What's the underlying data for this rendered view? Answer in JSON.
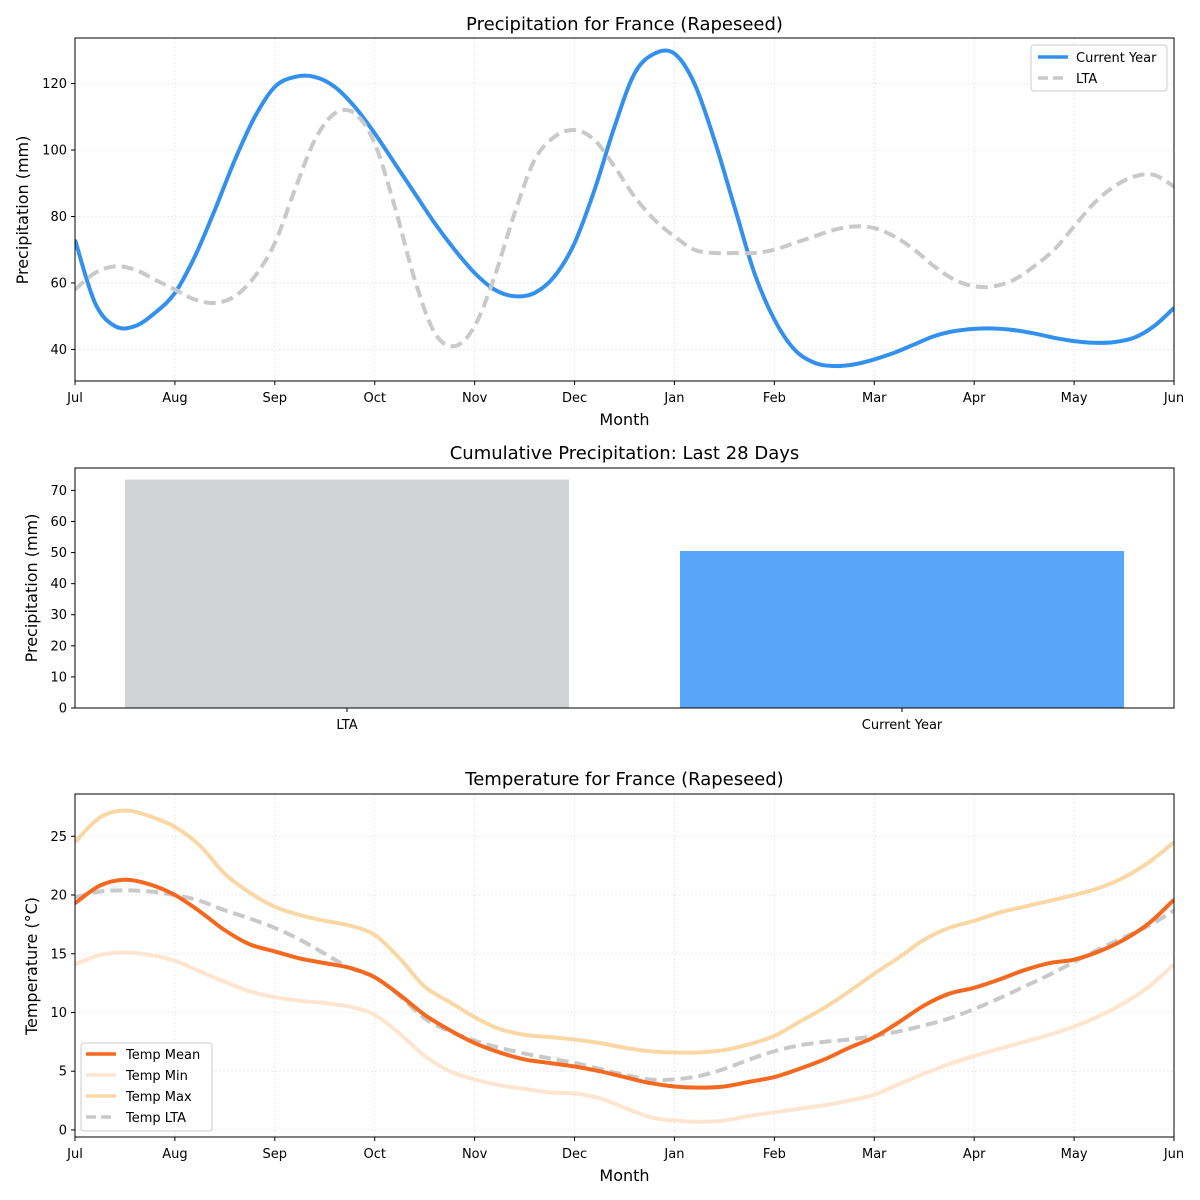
{
  "colors": {
    "current_year": "#3391ed",
    "lta": "#c8c9cb",
    "bar_lta": "#d0d4d7",
    "bar_current": "#57a6fb",
    "temp_mean": "#f5681f",
    "temp_min": "#fde5cf",
    "temp_max": "#f9d8a6",
    "temp_lta": "#c8c9cb"
  },
  "chart_data": [
    {
      "type": "line",
      "title": "Precipitation for France (Rapeseed)",
      "xlabel": "Month",
      "ylabel": "Precipitation (mm)",
      "x_ticks": [
        "Jul",
        "Aug",
        "Sep",
        "Oct",
        "Nov",
        "Dec",
        "Jan",
        "Feb",
        "Mar",
        "Apr",
        "May",
        "Jun"
      ],
      "x_range": [
        0,
        11
      ],
      "ylim": [
        30.5,
        133.7
      ],
      "y_ticks": [
        40,
        60,
        80,
        100,
        120
      ],
      "grid": true,
      "legend": "top-right",
      "series": [
        {
          "name": "Current Year",
          "x": [
            0,
            0.2,
            0.4,
            0.6,
            0.8,
            1.0,
            1.2,
            1.4,
            1.6,
            1.8,
            2.0,
            2.2,
            2.4,
            2.6,
            2.8,
            3.0,
            3.2,
            3.4,
            3.6,
            3.8,
            4.0,
            4.2,
            4.4,
            4.6,
            4.8,
            5.0,
            5.2,
            5.4,
            5.6,
            5.8,
            6.0,
            6.2,
            6.4,
            6.6,
            6.8,
            7.0,
            7.2,
            7.4,
            7.6,
            7.8,
            8.0,
            8.2,
            8.4,
            8.6,
            8.8,
            9.0,
            9.2,
            9.4,
            9.6,
            9.8,
            10.0,
            10.2,
            10.4,
            10.6,
            10.8,
            11.0
          ],
          "values": [
            73,
            54,
            47,
            47,
            51,
            57,
            68,
            82,
            97,
            110,
            119,
            122,
            122,
            119,
            113,
            105,
            96,
            87,
            78,
            70,
            63,
            58,
            56,
            57,
            62,
            72,
            88,
            107,
            123,
            129,
            129,
            120,
            103,
            83,
            63,
            49,
            40,
            36,
            35,
            35.5,
            37,
            39,
            41.5,
            44,
            45.5,
            46.2,
            46.3,
            45.8,
            44.8,
            43.5,
            42.5,
            42,
            42.2,
            43.5,
            47,
            52.5
          ]
        },
        {
          "name": "LTA",
          "x": [
            0,
            0.2,
            0.4,
            0.6,
            0.8,
            1.0,
            1.2,
            1.4,
            1.6,
            1.8,
            2.0,
            2.2,
            2.4,
            2.6,
            2.8,
            3.0,
            3.2,
            3.4,
            3.6,
            3.8,
            4.0,
            4.2,
            4.4,
            4.6,
            4.8,
            5.0,
            5.2,
            5.4,
            5.6,
            5.8,
            6.0,
            6.2,
            6.4,
            6.6,
            6.8,
            7.0,
            7.2,
            7.4,
            7.6,
            7.8,
            8.0,
            8.2,
            8.4,
            8.6,
            8.8,
            9.0,
            9.2,
            9.4,
            9.6,
            9.8,
            10.0,
            10.2,
            10.4,
            10.6,
            10.8,
            11.0
          ],
          "values": [
            58,
            63,
            65,
            64,
            61,
            58,
            55,
            54,
            56,
            62,
            72,
            88,
            103,
            111,
            111,
            102,
            83,
            61,
            45,
            41,
            47,
            62,
            81,
            97,
            104,
            106,
            103,
            95,
            86,
            79,
            74,
            70,
            69,
            69,
            69,
            70,
            72,
            74,
            76,
            77,
            76.5,
            74,
            70,
            65,
            61,
            59,
            59,
            61,
            65,
            70,
            77,
            84,
            89,
            92,
            92.5,
            89
          ]
        }
      ]
    },
    {
      "type": "bar",
      "title": "Cumulative Precipitation: Last 28 Days",
      "ylabel": "Precipitation (mm)",
      "categories": [
        "LTA",
        "Current Year"
      ],
      "values": [
        73.5,
        50.5
      ],
      "ylim": [
        0,
        77.2
      ],
      "y_ticks": [
        0,
        10,
        20,
        30,
        40,
        50,
        60,
        70
      ],
      "grid": false
    },
    {
      "type": "line",
      "title": "Temperature for France (Rapeseed)",
      "xlabel": "Month",
      "ylabel": "Temperature (°C)",
      "x_ticks": [
        "Jul",
        "Aug",
        "Sep",
        "Oct",
        "Nov",
        "Dec",
        "Jan",
        "Feb",
        "Mar",
        "Apr",
        "May",
        "Jun"
      ],
      "x_range": [
        0,
        11
      ],
      "ylim": [
        -0.6,
        28.6
      ],
      "y_ticks": [
        0,
        5,
        10,
        15,
        20,
        25
      ],
      "grid": true,
      "legend": "bottom-left",
      "series": [
        {
          "name": "Temp Mean",
          "x": [
            0,
            0.25,
            0.5,
            0.75,
            1.0,
            1.25,
            1.5,
            1.75,
            2.0,
            2.25,
            2.5,
            2.75,
            3.0,
            3.25,
            3.5,
            3.75,
            4.0,
            4.25,
            4.5,
            4.75,
            5.0,
            5.25,
            5.5,
            5.75,
            6.0,
            6.25,
            6.5,
            6.75,
            7.0,
            7.25,
            7.5,
            7.75,
            8.0,
            8.25,
            8.5,
            8.75,
            9.0,
            9.25,
            9.5,
            9.75,
            10.0,
            10.25,
            10.5,
            10.75,
            11.0
          ],
          "values": [
            19.3,
            20.8,
            21.3,
            20.9,
            20,
            18.6,
            17,
            15.8,
            15.2,
            14.6,
            14.2,
            13.8,
            13,
            11.5,
            9.8,
            8.5,
            7.4,
            6.6,
            6,
            5.7,
            5.4,
            5,
            4.5,
            4,
            3.7,
            3.6,
            3.7,
            4.1,
            4.5,
            5.2,
            6,
            7,
            7.9,
            9.2,
            10.6,
            11.6,
            12.1,
            12.8,
            13.6,
            14.2,
            14.5,
            15.2,
            16.2,
            17.6,
            19.6
          ]
        },
        {
          "name": "Temp Min",
          "x": [
            0,
            0.25,
            0.5,
            0.75,
            1.0,
            1.25,
            1.5,
            1.75,
            2.0,
            2.25,
            2.5,
            2.75,
            3.0,
            3.25,
            3.5,
            3.75,
            4.0,
            4.25,
            4.5,
            4.75,
            5.0,
            5.25,
            5.5,
            5.75,
            6.0,
            6.25,
            6.5,
            6.75,
            7.0,
            7.25,
            7.5,
            7.75,
            8.0,
            8.25,
            8.5,
            8.75,
            9.0,
            9.25,
            9.5,
            9.75,
            10.0,
            10.25,
            10.5,
            10.75,
            11.0
          ],
          "values": [
            14.1,
            14.9,
            15.1,
            14.9,
            14.4,
            13.5,
            12.6,
            11.8,
            11.3,
            11,
            10.8,
            10.5,
            9.8,
            8.2,
            6.3,
            5,
            4.3,
            3.8,
            3.5,
            3.2,
            3.1,
            2.7,
            1.9,
            1.1,
            0.8,
            0.7,
            0.8,
            1.2,
            1.5,
            1.8,
            2.1,
            2.5,
            3,
            3.9,
            4.8,
            5.6,
            6.3,
            6.9,
            7.5,
            8.1,
            8.8,
            9.7,
            10.8,
            12.2,
            14.1
          ]
        },
        {
          "name": "Temp Max",
          "x": [
            0,
            0.25,
            0.5,
            0.75,
            1.0,
            1.25,
            1.5,
            1.75,
            2.0,
            2.25,
            2.5,
            2.75,
            3.0,
            3.25,
            3.5,
            3.75,
            4.0,
            4.25,
            4.5,
            4.75,
            5.0,
            5.25,
            5.5,
            5.75,
            6.0,
            6.25,
            6.5,
            6.75,
            7.0,
            7.25,
            7.5,
            7.75,
            8.0,
            8.25,
            8.5,
            8.75,
            9.0,
            9.25,
            9.5,
            9.75,
            10.0,
            10.25,
            10.5,
            10.75,
            11.0
          ],
          "values": [
            24.5,
            26.6,
            27.2,
            26.7,
            25.8,
            24.2,
            21.8,
            20.2,
            19,
            18.3,
            17.8,
            17.4,
            16.6,
            14.6,
            12.2,
            10.9,
            9.6,
            8.6,
            8.1,
            7.9,
            7.7,
            7.4,
            7,
            6.7,
            6.6,
            6.6,
            6.8,
            7.3,
            8,
            9.2,
            10.4,
            11.8,
            13.3,
            14.7,
            16.2,
            17.2,
            17.8,
            18.5,
            19,
            19.5,
            20,
            20.6,
            21.5,
            22.8,
            24.5
          ]
        },
        {
          "name": "Temp LTA",
          "x": [
            0,
            0.25,
            0.5,
            0.75,
            1.0,
            1.25,
            1.5,
            1.75,
            2.0,
            2.25,
            2.5,
            2.75,
            3.0,
            3.25,
            3.5,
            3.75,
            4.0,
            4.25,
            4.5,
            4.75,
            5.0,
            5.25,
            5.5,
            5.75,
            6.0,
            6.25,
            6.5,
            6.75,
            7.0,
            7.25,
            7.5,
            7.75,
            8.0,
            8.25,
            8.5,
            8.75,
            9.0,
            9.25,
            9.5,
            9.75,
            10.0,
            10.25,
            10.5,
            10.75,
            11.0
          ],
          "values": [
            19.8,
            20.3,
            20.4,
            20.3,
            20,
            19.5,
            18.7,
            18,
            17.2,
            16.2,
            15,
            13.8,
            13,
            11.4,
            9.5,
            8.4,
            7.6,
            7,
            6.5,
            6.1,
            5.7,
            5.2,
            4.7,
            4.3,
            4.3,
            4.6,
            5.2,
            6,
            6.7,
            7.2,
            7.5,
            7.7,
            8,
            8.4,
            8.9,
            9.5,
            10.3,
            11.2,
            12.2,
            13.2,
            14.3,
            15.4,
            16.4,
            17.4,
            18.7
          ]
        }
      ]
    }
  ]
}
